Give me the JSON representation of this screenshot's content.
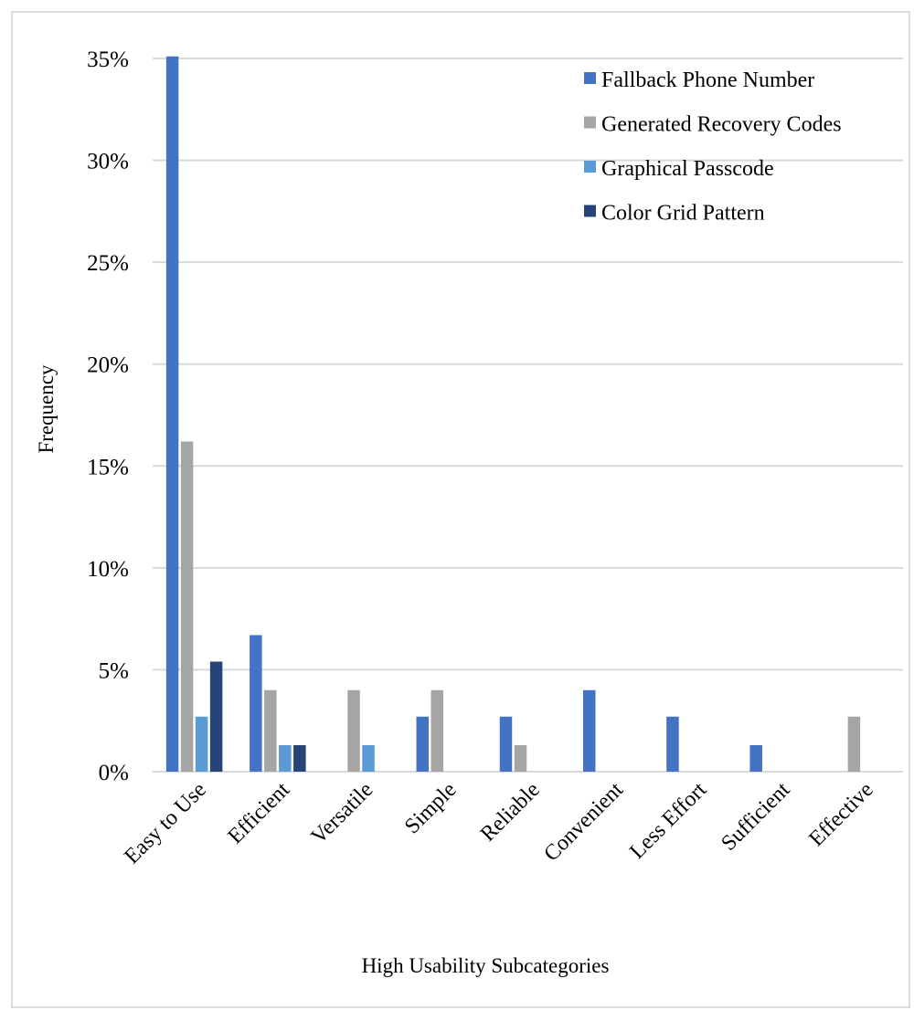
{
  "chart_data": {
    "type": "bar",
    "title": "",
    "xlabel": "High Usability Subcategories",
    "ylabel": "Frequency",
    "ylim": [
      0,
      0.35
    ],
    "yticks": [
      "0%",
      "5%",
      "10%",
      "15%",
      "20%",
      "25%",
      "30%",
      "35%"
    ],
    "grid": true,
    "legend_position": "top-right",
    "categories": [
      "Easy to Use",
      "Efficient",
      "Versatile",
      "Simple",
      "Reliable",
      "Convenient",
      "Less Effort",
      "Sufficient",
      "Effective"
    ],
    "series": [
      {
        "name": "Fallback Phone Number",
        "color": "#4472c4",
        "values": [
          0.351,
          0.067,
          0,
          0.027,
          0.027,
          0.04,
          0.027,
          0.013,
          0
        ]
      },
      {
        "name": "Generated Recovery Codes",
        "color": "#a5a5a5",
        "values": [
          0.162,
          0.04,
          0.04,
          0.04,
          0.013,
          0,
          0,
          0,
          0.027
        ]
      },
      {
        "name": "Graphical Passcode",
        "color": "#5b9bd5",
        "values": [
          0.027,
          0.013,
          0.013,
          0,
          0,
          0,
          0,
          0,
          0
        ]
      },
      {
        "name": "Color Grid Pattern",
        "color": "#264478",
        "values": [
          0.054,
          0.013,
          0,
          0,
          0,
          0,
          0,
          0,
          0
        ]
      }
    ]
  }
}
